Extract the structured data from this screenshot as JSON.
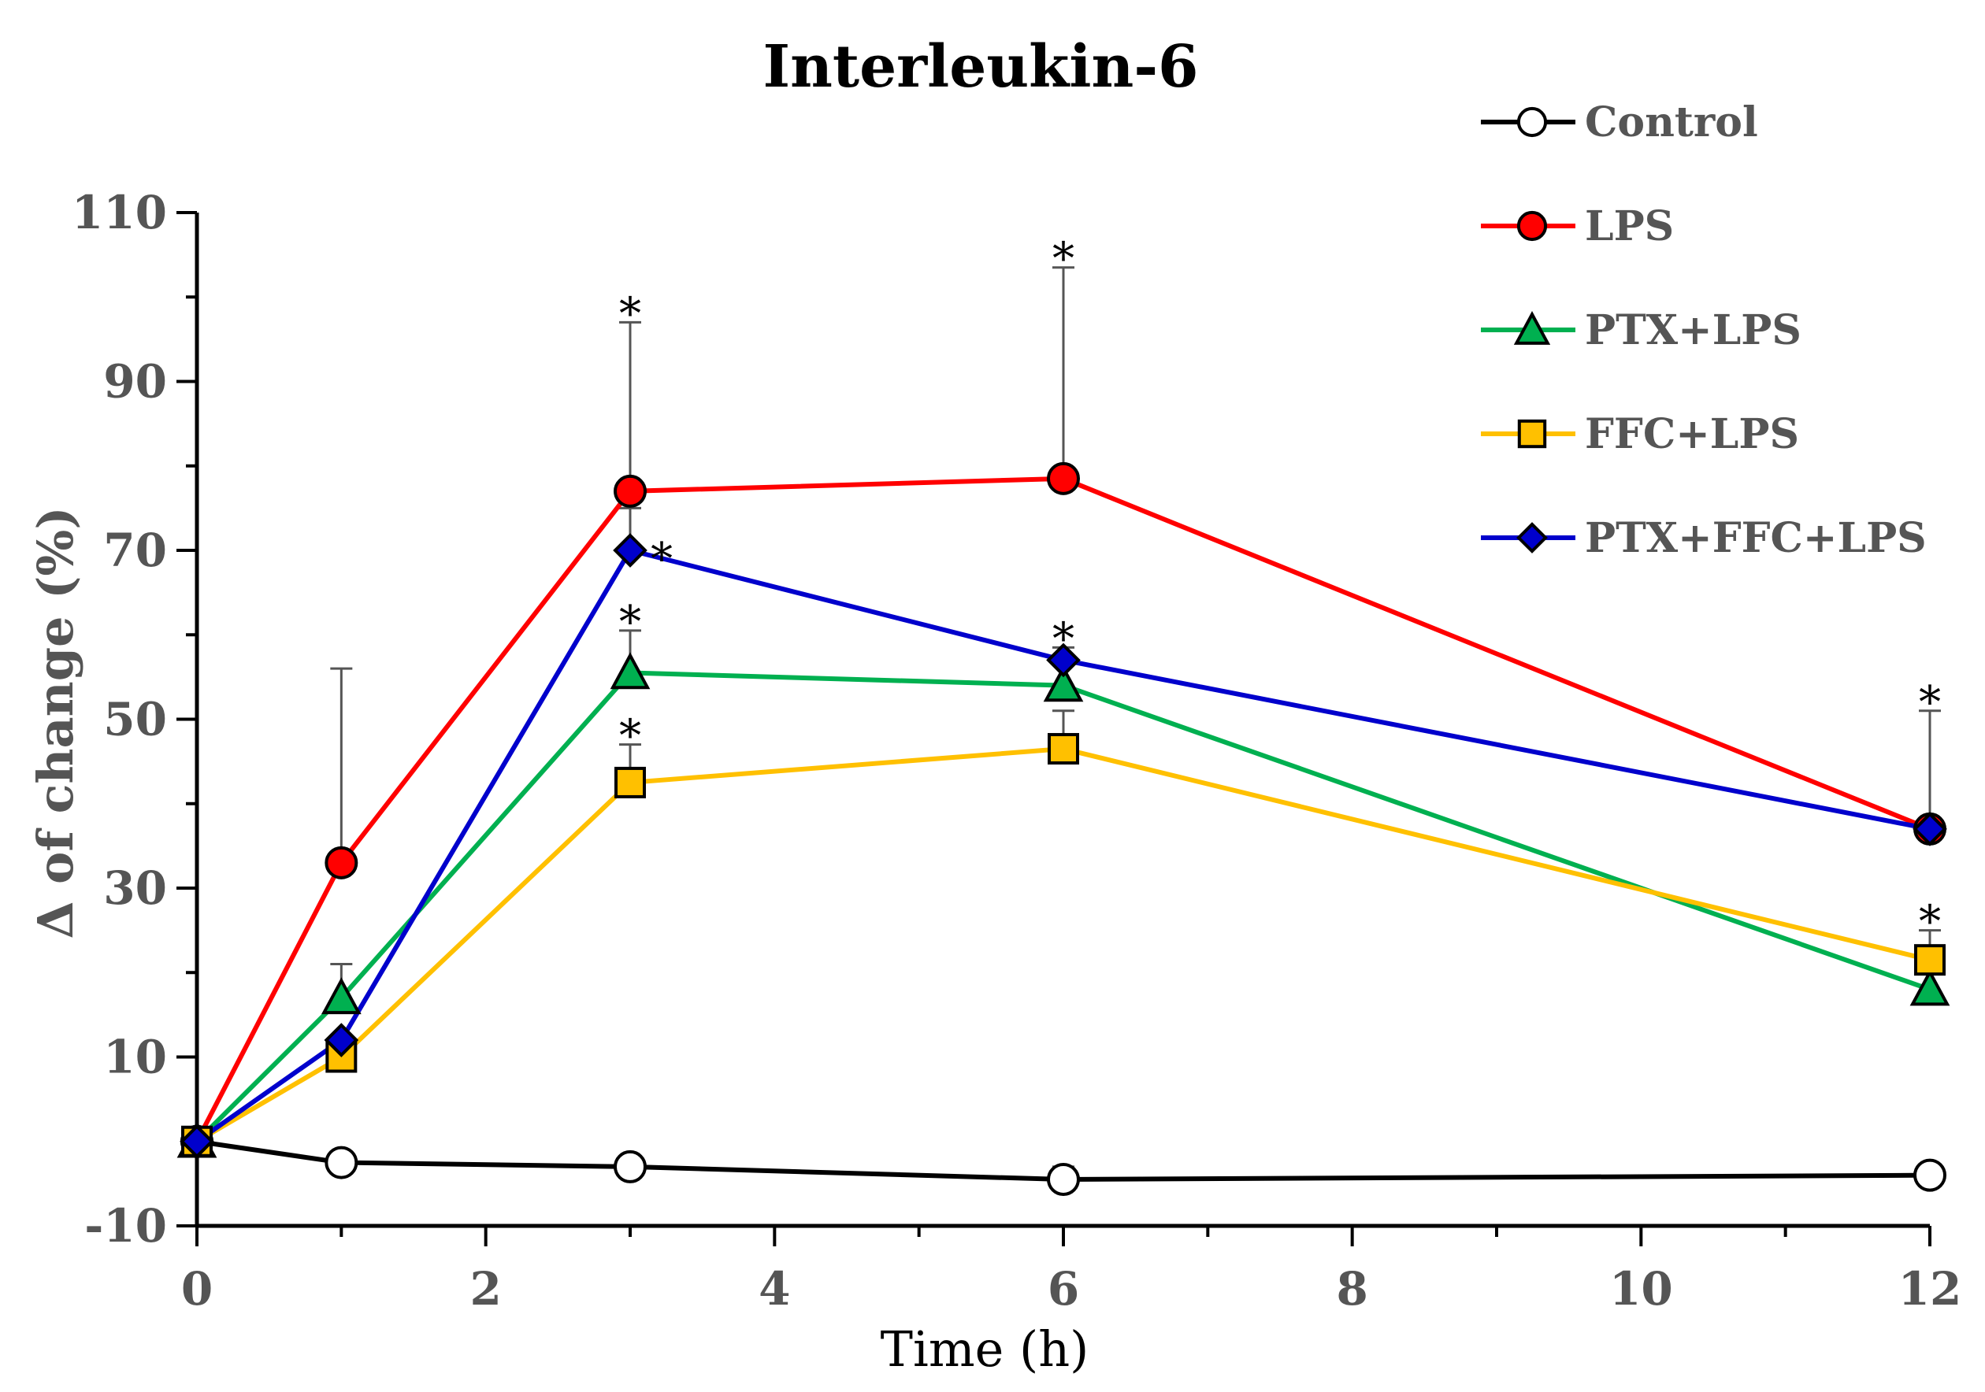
{
  "chart_data": {
    "type": "line",
    "title": "Interleukin-6",
    "xlabel": "Time (h)",
    "ylabel": "Δ of change (%)",
    "x": [
      0,
      1,
      3,
      6,
      12
    ],
    "xlim": [
      0,
      12
    ],
    "ylim": [
      -10,
      110
    ],
    "xticks": [
      0,
      2,
      4,
      6,
      8,
      10,
      12
    ],
    "yticks": [
      -10,
      10,
      30,
      50,
      70,
      90,
      110
    ],
    "grid": false,
    "legend_position": "top-right",
    "significance_marker": "*",
    "series": [
      {
        "name": "Control",
        "color": "#000000",
        "marker": "circle",
        "marker_fill": "#ffffff",
        "values": [
          0,
          -2.5,
          -3,
          -4.5,
          -4
        ],
        "error_up": [
          null,
          null,
          0.8,
          1.5,
          null
        ],
        "significant": [
          false,
          false,
          false,
          false,
          false
        ]
      },
      {
        "name": "LPS",
        "color": "#ff0000",
        "marker": "circle",
        "marker_fill": "#ff0000",
        "values": [
          0,
          33,
          77,
          78.5,
          37
        ],
        "error_up": [
          null,
          23,
          20,
          25,
          null
        ],
        "significant": [
          false,
          false,
          true,
          true,
          false
        ]
      },
      {
        "name": "PTX+LPS",
        "color": "#00b050",
        "marker": "triangle",
        "marker_fill": "#00b050",
        "values": [
          0,
          17,
          55.5,
          54,
          18
        ],
        "error_up": [
          null,
          4,
          5,
          null,
          null
        ],
        "significant": [
          false,
          false,
          true,
          false,
          false
        ]
      },
      {
        "name": "FFC+LPS",
        "color": "#ffc000",
        "marker": "square",
        "marker_fill": "#ffc000",
        "values": [
          0,
          10,
          42.5,
          46.5,
          21.5
        ],
        "error_up": [
          null,
          null,
          4.5,
          4.5,
          3.5
        ],
        "significant": [
          false,
          false,
          true,
          false,
          true
        ]
      },
      {
        "name": "PTX+FFC+LPS",
        "color": "#0000cc",
        "marker": "diamond",
        "marker_fill": "#0000cc",
        "values": [
          0,
          12,
          70,
          57,
          37
        ],
        "error_up": [
          null,
          null,
          5,
          1.5,
          14
        ],
        "significant": [
          false,
          false,
          true,
          true,
          true
        ]
      }
    ]
  }
}
